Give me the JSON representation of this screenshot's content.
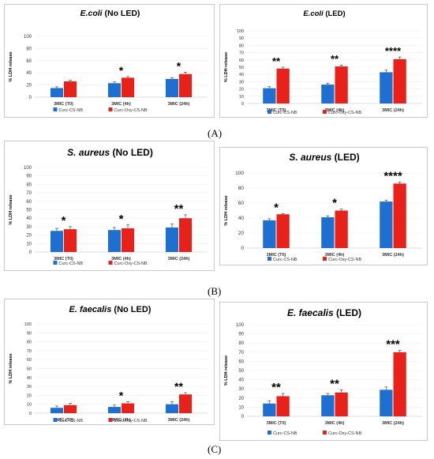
{
  "panel_labels": [
    "(A)",
    "(B)",
    "(C)"
  ],
  "colors": {
    "series1": "#1f6fd0",
    "series2": "#e8211b"
  },
  "chart_data": [
    {
      "id": "A1",
      "type": "bar",
      "title_italic": "E.coli",
      "title_rest": " (No LED)",
      "ylabel": "% LDH release",
      "ylim": [
        0,
        100
      ],
      "yticks": [
        0,
        20,
        40,
        60,
        80,
        100
      ],
      "categories": [
        "3MIC (T0)",
        "3MIC (4h)",
        "3MIC (24h)"
      ],
      "series": [
        {
          "name": "Curc-CS-NB",
          "values": [
            15,
            23,
            30
          ],
          "errors": [
            2,
            2,
            2
          ]
        },
        {
          "name": "Curc-Oxy-CS-NB",
          "values": [
            26,
            32,
            38
          ],
          "errors": [
            2,
            2,
            3
          ]
        }
      ],
      "significance": [
        "",
        "*",
        "*"
      ],
      "legend": "bottom"
    },
    {
      "id": "A2",
      "type": "bar",
      "title_italic": "E.coli",
      "title_rest": " (LED)",
      "ylabel": "% LDH release",
      "ylim": [
        0,
        100
      ],
      "yticks": [
        0,
        10,
        20,
        30,
        40,
        50,
        60,
        70,
        80,
        90,
        100
      ],
      "categories": [
        "3MIC (T0)",
        "3MIC (4h)",
        "3MIC (24h)"
      ],
      "series": [
        {
          "name": "Curc-CS-NB",
          "values": [
            21,
            26,
            43
          ],
          "errors": [
            2,
            2,
            3
          ]
        },
        {
          "name": "Curc-Oxy-CS-NB",
          "values": [
            48,
            51,
            61
          ],
          "errors": [
            2,
            2,
            3
          ]
        }
      ],
      "significance": [
        "**",
        "**",
        "****"
      ],
      "legend": "bottom"
    },
    {
      "id": "B1",
      "type": "bar",
      "title_italic": "S. aureus",
      "title_rest": " (No LED)",
      "ylabel": "% LDH release",
      "ylim": [
        0,
        100
      ],
      "yticks": [
        0,
        10,
        20,
        30,
        40,
        50,
        60,
        70,
        80,
        90,
        100
      ],
      "categories": [
        "3MIC (T0)",
        "3MIC (4h)",
        "3MIC (24h)"
      ],
      "series": [
        {
          "name": "Curc-CS-NB",
          "values": [
            25,
            26,
            29
          ],
          "errors": [
            3,
            3,
            4
          ]
        },
        {
          "name": "Curc-Oxy-CS-NB",
          "values": [
            27,
            28,
            40
          ],
          "errors": [
            3,
            4,
            4
          ]
        }
      ],
      "significance": [
        "*",
        "*",
        "**"
      ],
      "legend": "bottom"
    },
    {
      "id": "B2",
      "type": "bar",
      "title_italic": "S. aureus",
      "title_rest": " (LED)",
      "ylabel": "% LDH release",
      "ylim": [
        0,
        100
      ],
      "yticks": [
        0,
        20,
        40,
        60,
        80,
        100
      ],
      "categories": [
        "3MIC (T0)",
        "3MIC (4h)",
        "3MIC (24h)"
      ],
      "series": [
        {
          "name": "Curc-CS-NB",
          "values": [
            37,
            41,
            62
          ],
          "errors": [
            2,
            2,
            2
          ]
        },
        {
          "name": "Curc-Oxy-CS-NB",
          "values": [
            45,
            50,
            86
          ],
          "errors": [
            1,
            2,
            2
          ]
        }
      ],
      "significance": [
        "*",
        "*",
        "****"
      ],
      "legend": "bottom"
    },
    {
      "id": "C1",
      "type": "bar",
      "title_italic": "E. faecalis",
      "title_rest": " (No LED)",
      "ylabel": "% LDH release",
      "ylim": [
        0,
        100
      ],
      "yticks": [
        0,
        10,
        20,
        30,
        40,
        50,
        60,
        70,
        80,
        90,
        100
      ],
      "categories": [
        "3MIC (T0)",
        "3MIC (4h)",
        "3MIC (24h)"
      ],
      "series": [
        {
          "name": "Curc-CS-NB",
          "values": [
            6,
            7,
            10
          ],
          "errors": [
            2,
            2,
            3
          ]
        },
        {
          "name": "Curc-Oxy-CS-NB",
          "values": [
            9,
            11,
            21
          ],
          "errors": [
            2,
            2,
            2
          ]
        }
      ],
      "significance": [
        "",
        "*",
        "**"
      ],
      "legend": "bottom"
    },
    {
      "id": "C2",
      "type": "bar",
      "title_italic": "E. faecalis",
      "title_rest": " (LED)",
      "ylabel": "% LDH release",
      "ylim": [
        0,
        100
      ],
      "yticks": [
        0,
        10,
        20,
        30,
        40,
        50,
        60,
        70,
        80,
        90,
        100
      ],
      "categories": [
        "3MIC (T0)",
        "3MIC (4h)",
        "3MIC (24h)"
      ],
      "series": [
        {
          "name": "Curc-CS-NB",
          "values": [
            14,
            23,
            29
          ],
          "errors": [
            3,
            2,
            3
          ]
        },
        {
          "name": "Curc-Oxy-CS-NB",
          "values": [
            22,
            26,
            70
          ],
          "errors": [
            3,
            3,
            2
          ]
        }
      ],
      "significance": [
        "**",
        "**",
        "***"
      ],
      "legend": "bottom"
    }
  ]
}
